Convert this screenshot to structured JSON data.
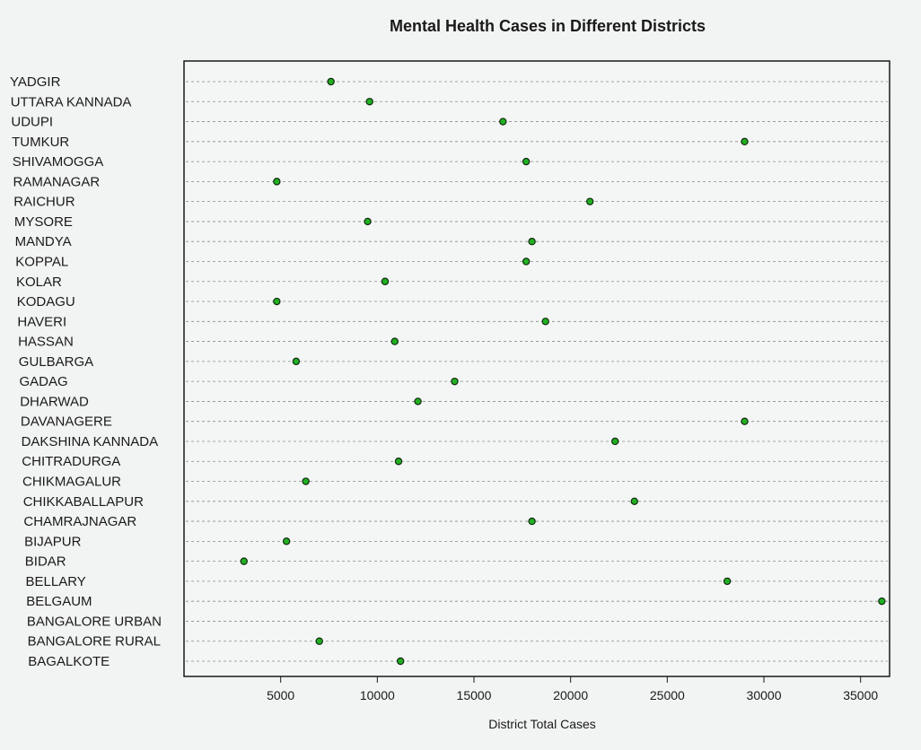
{
  "chart_data": {
    "type": "scatter",
    "title": "Mental Health Cases in Different Districts",
    "xlabel": "District Total Cases",
    "ylabel": "",
    "xlim": [
      0,
      36500
    ],
    "xticks": [
      5000,
      10000,
      15000,
      20000,
      25000,
      30000,
      35000
    ],
    "grid": "horizontal-dashed",
    "legend": "none",
    "marker_color": "#22b022",
    "categories": [
      "YADGIR",
      "UTTARA KANNADA",
      "UDUPI",
      "TUMKUR",
      "SHIVAMOGGA",
      "RAMANAGAR",
      "RAICHUR",
      "MYSORE",
      "MANDYA",
      "KOPPAL",
      "KOLAR",
      "KODAGU",
      "HAVERI",
      "HASSAN",
      "GULBARGA",
      "GADAG",
      "DHARWAD",
      "DAVANAGERE",
      "DAKSHINA KANNADA",
      "CHITRADURGA",
      "CHIKMAGALUR",
      "CHIKKABALLAPUR",
      "CHAMRAJNAGAR",
      "BIJAPUR",
      "BIDAR",
      "BELLARY",
      "BELGAUM",
      "BANGALORE URBAN",
      "BANGALORE RURAL",
      "BAGALKOTE"
    ],
    "values": [
      7600,
      9600,
      16500,
      29000,
      17700,
      4800,
      21000,
      9500,
      18000,
      17700,
      10400,
      4800,
      18700,
      10900,
      5800,
      14000,
      12100,
      29000,
      22300,
      11100,
      6300,
      23300,
      18000,
      5300,
      3100,
      28100,
      36100,
      null,
      7000,
      11200
    ]
  }
}
